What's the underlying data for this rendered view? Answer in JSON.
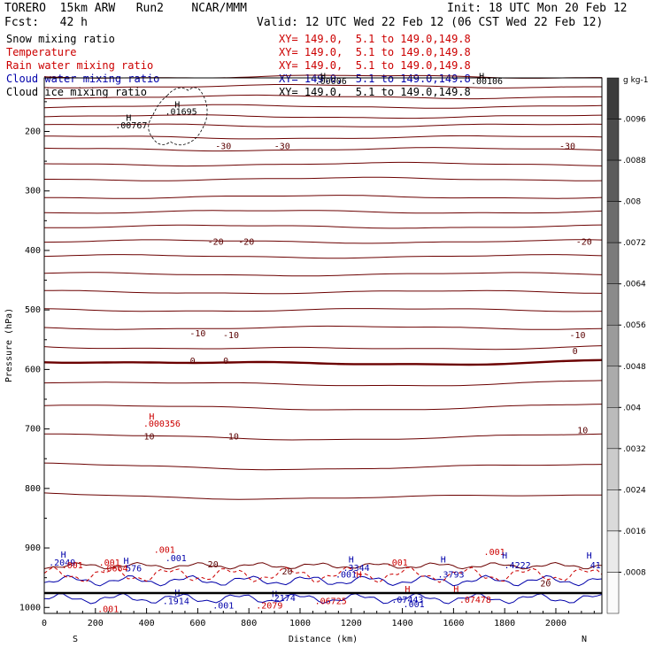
{
  "header": {
    "model": "TORERO  15km ARW   Run2    NCAR/MMM",
    "init": "Init: 18 UTC Mon 20 Feb 12",
    "fcst": "Fcst:   42 h",
    "valid": "Valid: 12 UTC Wed 22 Feb 12 (06 CST Wed 22 Feb 12)"
  },
  "legend": [
    {
      "label": "Snow mixing ratio",
      "xy": "XY= 149.0,  5.1 to 149.0,149.8",
      "color": "#000000"
    },
    {
      "label": "Temperature",
      "xy": "XY= 149.0,  5.1 to 149.0,149.8",
      "color": "#cc0000"
    },
    {
      "label": "Rain water mixing ratio",
      "xy": "XY= 149.0,  5.1 to 149.0,149.8",
      "color": "#cc0000"
    },
    {
      "label": "Cloud water mixing ratio",
      "xy": "XY= 149.0,  5.1 to 149.0,149.8",
      "color": "#0000aa"
    },
    {
      "label": "Cloud ice mixing ratio",
      "xy": "XY= 149.0,  5.1 to 149.0,149.8",
      "color": "#000000"
    }
  ],
  "chart_data": {
    "type": "contour-cross-section",
    "xlabel": "Distance (km)",
    "ylabel": "Pressure (hPa)",
    "xlim": [
      0,
      2180
    ],
    "ylim": [
      1010,
      110
    ],
    "xticks": [
      0,
      200,
      400,
      600,
      800,
      1000,
      1200,
      1400,
      1600,
      1800,
      2000
    ],
    "yticks": [
      200,
      300,
      400,
      500,
      600,
      700,
      800,
      900,
      1000
    ],
    "endpoint_left": "S",
    "endpoint_right": "N",
    "temperature_isotherms": [
      {
        "label": "-30",
        "pressure": 225
      },
      {
        "label": "-20",
        "pressure": 380
      },
      {
        "label": "-10",
        "pressure": 535
      },
      {
        "label": "0",
        "pressure": 585
      },
      {
        "label": "10",
        "pressure": 710
      },
      {
        "label": "20",
        "pressure": 925
      }
    ],
    "temperature_contour_pressures": [
      108,
      124,
      142,
      158,
      175,
      190,
      210,
      230,
      255,
      280,
      310,
      335,
      360,
      385,
      410,
      440,
      470,
      500,
      530,
      560,
      585,
      620,
      660,
      710,
      760,
      810
    ],
    "labels": [
      {
        "text": "-30",
        "x": 700,
        "p": 225,
        "color": "#5a0000"
      },
      {
        "text": "-30",
        "x": 930,
        "p": 225,
        "color": "#5a0000"
      },
      {
        "text": "-30",
        "x": 2045,
        "p": 225,
        "color": "#5a0000"
      },
      {
        "text": "-20",
        "x": 670,
        "p": 386,
        "color": "#5a0000"
      },
      {
        "text": "-20",
        "x": 790,
        "p": 386,
        "color": "#5a0000"
      },
      {
        "text": "-20",
        "x": 2110,
        "p": 386,
        "color": "#5a0000"
      },
      {
        "text": "-10",
        "x": 600,
        "p": 540,
        "color": "#5a0000"
      },
      {
        "text": "-10",
        "x": 730,
        "p": 543,
        "color": "#5a0000"
      },
      {
        "text": "-10",
        "x": 2085,
        "p": 543,
        "color": "#5a0000"
      },
      {
        "text": "0",
        "x": 580,
        "p": 586,
        "color": "#5a0000"
      },
      {
        "text": "0",
        "x": 710,
        "p": 586,
        "color": "#5a0000"
      },
      {
        "text": "0",
        "x": 2075,
        "p": 570,
        "color": "#5a0000"
      },
      {
        "text": "10",
        "x": 410,
        "p": 713,
        "color": "#5a0000"
      },
      {
        "text": "10",
        "x": 740,
        "p": 713,
        "color": "#5a0000"
      },
      {
        "text": "10",
        "x": 2105,
        "p": 703,
        "color": "#5a0000"
      },
      {
        "text": "20",
        "x": 660,
        "p": 928,
        "color": "#5a0000"
      },
      {
        "text": "20",
        "x": 950,
        "p": 940,
        "color": "#5a0000"
      },
      {
        "text": "20",
        "x": 1960,
        "p": 960,
        "color": "#5a0000"
      },
      {
        "text": "H",
        "x": 520,
        "p": 155,
        "color": "#000000"
      },
      {
        "text": ".01695",
        "x": 535,
        "p": 167,
        "color": "#000000"
      },
      {
        "text": "H",
        "x": 330,
        "p": 178,
        "color": "#000000"
      },
      {
        "text": ".00767",
        "x": 340,
        "p": 190,
        "color": "#000000"
      },
      {
        "text": "H",
        "x": 1090,
        "p": 108,
        "color": "#000000"
      },
      {
        "text": ".00006",
        "x": 1120,
        "p": 116,
        "color": "#000000"
      },
      {
        "text": "H",
        "x": 1710,
        "p": 108,
        "color": "#000000"
      },
      {
        "text": ".00106",
        "x": 1730,
        "p": 116,
        "color": "#000000"
      },
      {
        "text": "H",
        "x": 420,
        "p": 680,
        "color": "#cc0000"
      },
      {
        "text": ".000356",
        "x": 460,
        "p": 692,
        "color": "#cc0000"
      },
      {
        "text": "H",
        "x": 75,
        "p": 912,
        "color": "#0000aa"
      },
      {
        "text": ".2049",
        "x": 70,
        "p": 925,
        "color": "#0000aa"
      },
      {
        "text": ".001",
        "x": 110,
        "p": 930,
        "color": "#cc0000"
      },
      {
        "text": "H",
        "x": 320,
        "p": 922,
        "color": "#0000aa"
      },
      {
        "text": ".0664",
        "x": 275,
        "p": 935,
        "color": "#cc0000"
      },
      {
        "text": "576",
        "x": 350,
        "p": 935,
        "color": "#0000aa"
      },
      {
        "text": ".001",
        "x": 470,
        "p": 904,
        "color": "#cc0000"
      },
      {
        "text": ".001",
        "x": 515,
        "p": 918,
        "color": "#0000aa"
      },
      {
        "text": ".001",
        "x": 255,
        "p": 925,
        "color": "#cc0000"
      },
      {
        "text": ".1914",
        "x": 515,
        "p": 990,
        "color": "#0000aa"
      },
      {
        "text": "H",
        "x": 520,
        "p": 976,
        "color": "#0000aa"
      },
      {
        "text": ".001",
        "x": 700,
        "p": 997,
        "color": "#0000aa"
      },
      {
        "text": "H",
        "x": 900,
        "p": 978,
        "color": "#0000aa"
      },
      {
        "text": ".2174",
        "x": 930,
        "p": 985,
        "color": "#0000aa"
      },
      {
        "text": ".2079",
        "x": 880,
        "p": 997,
        "color": "#cc0000"
      },
      {
        "text": ".001",
        "x": 250,
        "p": 1003,
        "color": "#cc0000"
      },
      {
        "text": "H",
        "x": 1200,
        "p": 920,
        "color": "#0000aa"
      },
      {
        "text": ".3344",
        "x": 1220,
        "p": 934,
        "color": "#0000aa"
      },
      {
        "text": ".001",
        "x": 1180,
        "p": 945,
        "color": "#0000aa"
      },
      {
        "text": ".06725",
        "x": 1120,
        "p": 990,
        "color": "#cc0000"
      },
      {
        "text": "H",
        "x": 1230,
        "p": 945,
        "color": "#cc0000"
      },
      {
        "text": ".001",
        "x": 1380,
        "p": 925,
        "color": "#cc0000"
      },
      {
        "text": "H",
        "x": 1420,
        "p": 970,
        "color": "#cc0000"
      },
      {
        "text": ".07443",
        "x": 1420,
        "p": 988,
        "color": "#0000aa"
      },
      {
        "text": ".001",
        "x": 1445,
        "p": 995,
        "color": "#0000aa"
      },
      {
        "text": "H",
        "x": 1560,
        "p": 920,
        "color": "#0000aa"
      },
      {
        "text": ".3793",
        "x": 1590,
        "p": 945,
        "color": "#0000aa"
      },
      {
        "text": "H",
        "x": 1610,
        "p": 970,
        "color": "#cc0000"
      },
      {
        "text": ".07478",
        "x": 1685,
        "p": 988,
        "color": "#cc0000"
      },
      {
        "text": ".001",
        "x": 1760,
        "p": 907,
        "color": "#cc0000"
      },
      {
        "text": "H",
        "x": 1800,
        "p": 913,
        "color": "#0000aa"
      },
      {
        "text": ".4222",
        "x": 1850,
        "p": 930,
        "color": "#0000aa"
      },
      {
        "text": "H",
        "x": 2130,
        "p": 913,
        "color": "#0000aa"
      },
      {
        "text": "41",
        "x": 2155,
        "p": 930,
        "color": "#0000aa"
      }
    ],
    "colorbar": {
      "unit": "g kg-1",
      "ticks": [
        ".0096",
        ".0088",
        ".008",
        ".0072",
        ".0064",
        ".0056",
        ".0048",
        ".004",
        ".0032",
        ".0024",
        ".0016",
        ".0008"
      ]
    }
  }
}
